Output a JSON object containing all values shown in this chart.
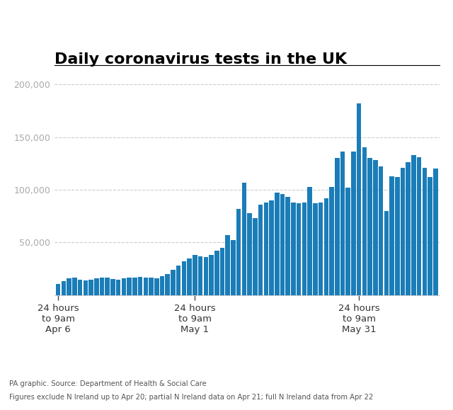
{
  "title": "Daily coronavirus tests in the UK",
  "bar_color": "#1b7db8",
  "background_color": "#ffffff",
  "ylim": [
    0,
    210000
  ],
  "yticks": [
    50000,
    100000,
    150000,
    200000
  ],
  "ytick_labels": [
    "50,000",
    "100,000",
    "150,000",
    "200,000"
  ],
  "footnote1": "PA graphic. Source: Department of Health & Social Care",
  "footnote2": "Figures exclude N Ireland up to Apr 20; partial N Ireland data on Apr 21; full N Ireland data from Apr 22",
  "xtick_labels": [
    "24 hours\nto 9am\nApr 6",
    "24 hours\nto 9am\nMay 1",
    "24 hours\nto 9am\nMay 31"
  ],
  "values": [
    11000,
    13500,
    16000,
    16500,
    15000,
    14000,
    14500,
    16000,
    16500,
    17000,
    15500,
    15000,
    16000,
    16500,
    16500,
    17500,
    17000,
    16500,
    16000,
    18000,
    20000,
    24000,
    28000,
    32000,
    35000,
    38000,
    37000,
    36000,
    38000,
    42000,
    45000,
    57000,
    52000,
    82000,
    107000,
    78000,
    73000,
    86000,
    88000,
    90000,
    97000,
    96000,
    93000,
    88000,
    87000,
    88000,
    103000,
    87000,
    88000,
    92000,
    103000,
    130000,
    136000,
    102000,
    136000,
    182000,
    140000,
    130000,
    128000,
    122000,
    80000,
    113000,
    112000,
    121000,
    126000,
    133000,
    131000,
    121000,
    112000,
    120000
  ]
}
